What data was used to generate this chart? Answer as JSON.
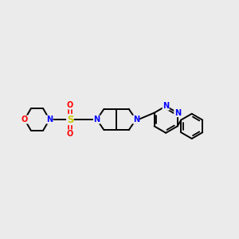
{
  "bg_color": "#ebebeb",
  "bond_color": "#000000",
  "n_color": "#0000ff",
  "o_color": "#ff0000",
  "s_color": "#cccc00",
  "figsize": [
    3.0,
    3.0
  ],
  "dpi": 100,
  "xlim": [
    0,
    10
  ],
  "ylim": [
    3.5,
    6.5
  ]
}
